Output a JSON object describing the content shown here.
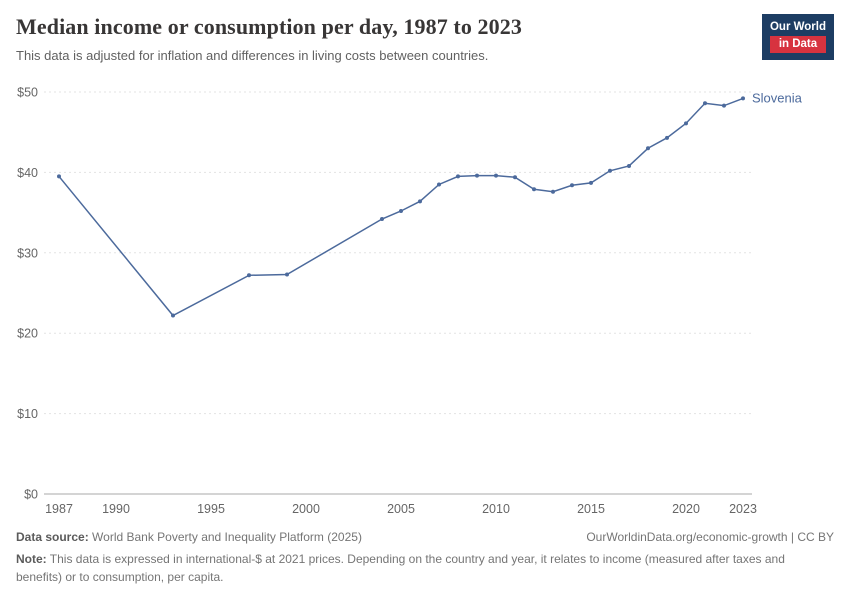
{
  "header": {
    "title": "Median income or consumption per day, 1987 to 2023",
    "subtitle": "This data is adjusted for inflation and differences in living costs between countries.",
    "logo": {
      "line1": "Our World",
      "line2": "in Data",
      "navy": "#1d3d63",
      "red": "#d7333f"
    }
  },
  "chart_data": {
    "type": "line",
    "title": "Median income or consumption per day, 1987 to 2023",
    "series": [
      {
        "name": "Slovenia",
        "color": "#4C6A9C",
        "x": [
          1987,
          1993,
          1997,
          1999,
          2004,
          2005,
          2006,
          2007,
          2008,
          2009,
          2010,
          2011,
          2012,
          2013,
          2014,
          2015,
          2016,
          2017,
          2018,
          2019,
          2020,
          2021,
          2022,
          2023
        ],
        "values": [
          39.5,
          22.2,
          27.2,
          27.3,
          34.2,
          35.2,
          36.4,
          38.5,
          39.5,
          39.6,
          39.6,
          39.4,
          37.9,
          37.6,
          38.4,
          38.7,
          40.2,
          40.8,
          43.0,
          44.3,
          46.1,
          48.6,
          48.3,
          49.2
        ]
      }
    ],
    "xlim": [
      1987,
      2023.5
    ],
    "ylim": [
      0,
      50
    ],
    "y_ticks": [
      0,
      10,
      20,
      30,
      40,
      50
    ],
    "y_tick_labels": [
      "$0",
      "$10",
      "$20",
      "$30",
      "$40",
      "$50"
    ],
    "x_ticks": [
      1987,
      1990,
      1995,
      2000,
      2005,
      2010,
      2015,
      2020,
      2023
    ],
    "grid": "dashed-horizontal",
    "legend_position": "end-of-line",
    "end_label": "Slovenia"
  },
  "footer": {
    "source_label": "Data source:",
    "source_text": " World Bank Poverty and Inequality Platform (2025)",
    "rights": "OurWorldinData.org/economic-growth | CC BY",
    "note_label": "Note:",
    "note_text": " This data is expressed in international-$ at 2021 prices. Depending on the country and year, it relates to income (measured after taxes and benefits) or to consumption, per capita."
  }
}
